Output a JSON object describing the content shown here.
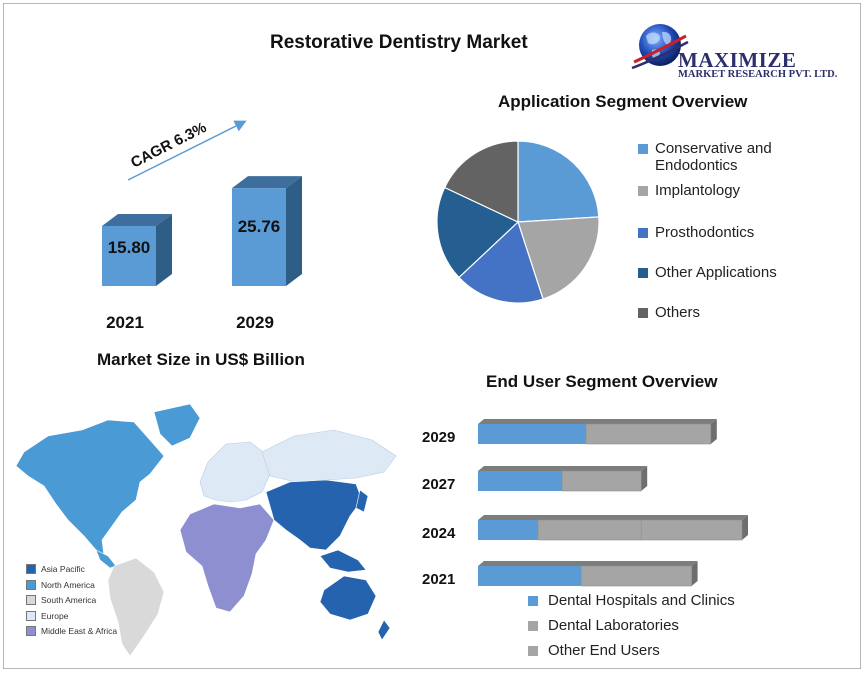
{
  "title": "Restorative Dentistry Market",
  "logo": {
    "name": "MAXIMIZE",
    "subtitle": "MARKET RESEARCH PVT. LTD."
  },
  "colors": {
    "bar_front": "#5b9bd5",
    "bar_side": "#2e5d85",
    "bar_top": "#3e6e9d",
    "arrow": "#5b9bd5"
  },
  "chart_data": [
    {
      "type": "bar",
      "title": "Market Size in US$ Billion",
      "categories": [
        "2021",
        "2029"
      ],
      "values": [
        15.8,
        25.76
      ],
      "value_labels": [
        "15.80",
        "25.76"
      ],
      "annotation": "CAGR 6.3%"
    },
    {
      "type": "pie",
      "title": "Application Segment Overview",
      "labels": [
        "Conservative and Endodontics",
        "Implantology",
        "Prosthodontics",
        "Other Applications",
        "Others"
      ],
      "values": [
        24,
        21,
        18,
        19,
        18
      ],
      "colors": [
        "#5b9bd5",
        "#a5a5a5",
        "#4472c4",
        "#255e91",
        "#636363"
      ],
      "legend": "right"
    },
    {
      "type": "bar",
      "orientation": "horizontal",
      "stacked": true,
      "title": "End User Segment Overview",
      "categories": [
        "2029",
        "2027",
        "2024",
        "2021"
      ],
      "series": [
        {
          "name": "Dental Hospitals and Clinics",
          "values": [
            45,
            35,
            25,
            43
          ],
          "color": "#5b9bd5"
        },
        {
          "name": "Dental Laboratories",
          "values": [
            52,
            33,
            43,
            46
          ],
          "color": "#a5a5a5"
        },
        {
          "name": "Other End Users",
          "values": [
            0,
            0,
            42,
            0
          ],
          "color": "#a5a5a5"
        }
      ],
      "legend": "bottom"
    }
  ],
  "map": {
    "legend": [
      {
        "label": "Asia Pacific",
        "color": "#2563ae"
      },
      {
        "label": "North America",
        "color": "#4a9ad6"
      },
      {
        "label": "South America",
        "color": "#d9d9d9"
      },
      {
        "label": "Europe",
        "color": "#dde9f5"
      },
      {
        "label": "Middle East & Africa",
        "color": "#8e8fd0"
      }
    ]
  }
}
